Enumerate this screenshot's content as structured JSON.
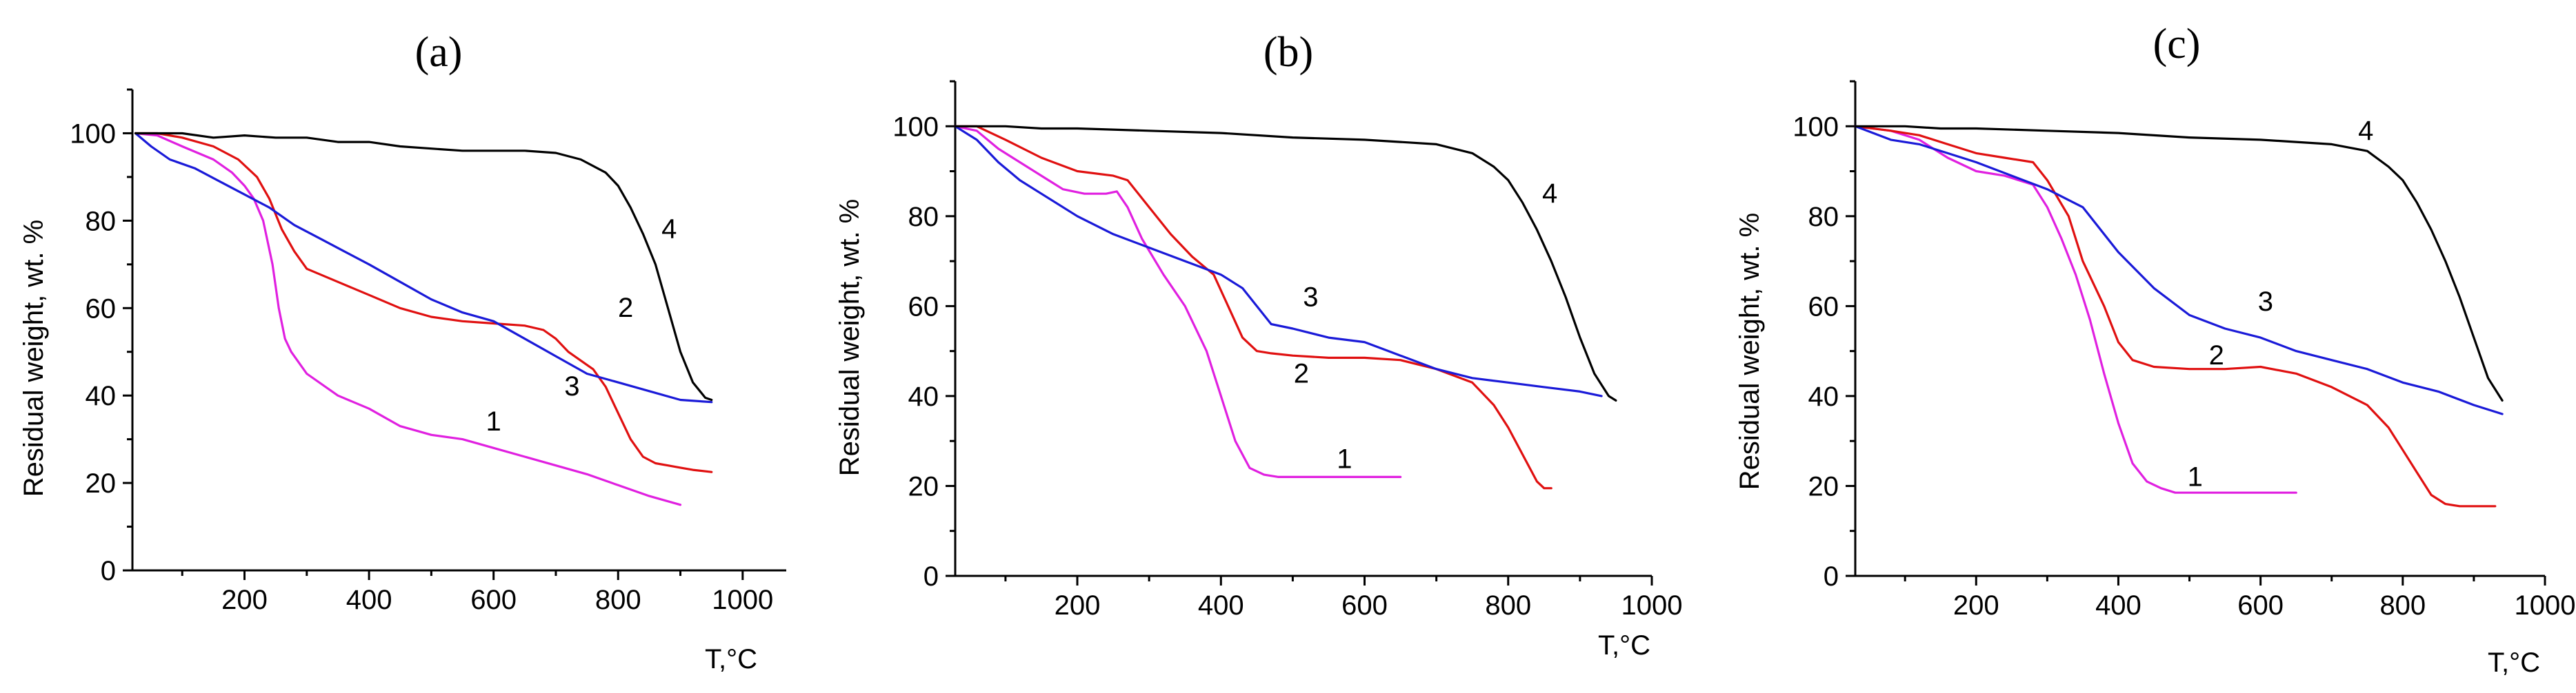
{
  "colors": {
    "1": "#e020e0",
    "2": "#e01010",
    "3": "#1a1ad8",
    "4": "#000000"
  },
  "chart_data": [
    {
      "type": "line",
      "panel_label": "(a)",
      "xlabel": "T,°C",
      "ylabel": "Residual weight, wt. %",
      "xlim": [
        20,
        1070
      ],
      "ylim": [
        0,
        110
      ],
      "xticks": [
        200,
        400,
        600,
        800,
        1000
      ],
      "yticks": [
        0,
        20,
        40,
        60,
        80,
        100
      ],
      "series": [
        {
          "name": "1",
          "x": [
            25,
            60,
            100,
            150,
            180,
            200,
            215,
            230,
            245,
            255,
            265,
            275,
            300,
            350,
            400,
            450,
            500,
            550,
            600,
            650,
            700,
            750,
            800,
            850,
            900
          ],
          "y": [
            100,
            99.5,
            97,
            94,
            91,
            88,
            85,
            80,
            70,
            60,
            53,
            50,
            45,
            40,
            37,
            33,
            31,
            30,
            28,
            26,
            24,
            22,
            19.5,
            17,
            15
          ]
        },
        {
          "name": "2",
          "x": [
            25,
            60,
            100,
            150,
            190,
            220,
            240,
            260,
            280,
            300,
            350,
            400,
            450,
            500,
            550,
            600,
            650,
            680,
            700,
            720,
            740,
            760,
            780,
            800,
            820,
            840,
            860,
            880,
            900,
            920,
            950
          ],
          "y": [
            100,
            100,
            99,
            97,
            94,
            90,
            85,
            78,
            73,
            69,
            66,
            63,
            60,
            58,
            57,
            56.5,
            56,
            55,
            53,
            50,
            48,
            46,
            42,
            36,
            30,
            26,
            24.5,
            24,
            23.5,
            23,
            22.5
          ]
        },
        {
          "name": "3",
          "x": [
            25,
            50,
            80,
            120,
            160,
            200,
            240,
            280,
            320,
            360,
            400,
            450,
            500,
            550,
            600,
            650,
            700,
            750,
            800,
            850,
            900,
            950
          ],
          "y": [
            100,
            97,
            94,
            92,
            89,
            86,
            83,
            79,
            76,
            73,
            70,
            66,
            62,
            59,
            57,
            53,
            49,
            45,
            43,
            41,
            39,
            38.5
          ]
        },
        {
          "name": "4",
          "x": [
            25,
            100,
            150,
            200,
            250,
            300,
            350,
            400,
            450,
            500,
            550,
            600,
            650,
            700,
            740,
            780,
            800,
            820,
            840,
            860,
            880,
            900,
            920,
            940,
            950
          ],
          "y": [
            100,
            100,
            99,
            99.5,
            99,
            99,
            98,
            98,
            97,
            96.5,
            96,
            96,
            96,
            95.5,
            94,
            91,
            88,
            83,
            77,
            70,
            60,
            50,
            43,
            39.5,
            39
          ]
        }
      ],
      "curve_labels": [
        {
          "text": "1",
          "x": 600,
          "y": 32
        },
        {
          "text": "2",
          "x": 812,
          "y": 58
        },
        {
          "text": "3",
          "x": 726,
          "y": 40
        },
        {
          "text": "4",
          "x": 882,
          "y": 76
        }
      ]
    },
    {
      "type": "line",
      "panel_label": "(b)",
      "xlabel": "T,°C",
      "ylabel": "Residual weight, wt. %",
      "xlim": [
        30,
        1000
      ],
      "ylim": [
        0,
        110
      ],
      "xticks": [
        200,
        400,
        600,
        800,
        1000
      ],
      "yticks": [
        0,
        20,
        40,
        60,
        80,
        100
      ],
      "series": [
        {
          "name": "1",
          "x": [
            30,
            60,
            90,
            120,
            150,
            180,
            210,
            240,
            255,
            270,
            290,
            320,
            350,
            380,
            400,
            420,
            440,
            460,
            480,
            500,
            550,
            650
          ],
          "y": [
            100,
            99,
            95,
            92,
            89,
            86,
            85,
            85,
            85.5,
            82,
            75,
            67,
            60,
            50,
            40,
            30,
            24,
            22.5,
            22,
            22,
            22,
            22
          ]
        },
        {
          "name": "2",
          "x": [
            30,
            60,
            100,
            150,
            200,
            250,
            270,
            300,
            330,
            360,
            390,
            410,
            430,
            450,
            470,
            500,
            550,
            600,
            650,
            700,
            750,
            780,
            800,
            820,
            840,
            850,
            860
          ],
          "y": [
            100,
            100,
            97,
            93,
            90,
            89,
            88,
            82,
            76,
            71,
            67,
            60,
            53,
            50,
            49.5,
            49,
            48.5,
            48.5,
            48,
            46,
            43,
            38,
            33,
            27,
            21,
            19.5,
            19.5
          ]
        },
        {
          "name": "3",
          "x": [
            30,
            60,
            90,
            120,
            150,
            200,
            250,
            300,
            350,
            400,
            430,
            450,
            470,
            500,
            550,
            600,
            650,
            700,
            750,
            800,
            850,
            900,
            930
          ],
          "y": [
            100,
            97,
            92,
            88,
            85,
            80,
            76,
            73,
            70,
            67,
            64,
            60,
            56,
            55,
            53,
            52,
            49,
            46,
            44,
            43,
            42,
            41,
            40
          ]
        },
        {
          "name": "4",
          "x": [
            30,
            100,
            150,
            200,
            300,
            400,
            500,
            600,
            650,
            700,
            750,
            780,
            800,
            820,
            840,
            860,
            880,
            900,
            920,
            940,
            950
          ],
          "y": [
            100,
            100,
            99.5,
            99.5,
            99,
            98.5,
            97.5,
            97,
            96.5,
            96,
            94,
            91,
            88,
            83,
            77,
            70,
            62,
            53,
            45,
            40,
            39
          ]
        }
      ],
      "curve_labels": [
        {
          "text": "1",
          "x": 572,
          "y": 24
        },
        {
          "text": "2",
          "x": 512,
          "y": 43
        },
        {
          "text": "3",
          "x": 525,
          "y": 60
        },
        {
          "text": "4",
          "x": 858,
          "y": 83
        }
      ]
    },
    {
      "type": "line",
      "panel_label": "(c)",
      "xlabel": "T,°C",
      "ylabel": "Residual weight, wt. %",
      "xlim": [
        30,
        1000
      ],
      "ylim": [
        0,
        110
      ],
      "xticks": [
        200,
        400,
        600,
        800,
        1000
      ],
      "yticks": [
        0,
        20,
        40,
        60,
        80,
        100
      ],
      "series": [
        {
          "name": "1",
          "x": [
            30,
            80,
            120,
            160,
            200,
            240,
            280,
            300,
            320,
            340,
            360,
            380,
            400,
            420,
            440,
            460,
            480,
            500,
            550,
            650
          ],
          "y": [
            100,
            99,
            97,
            93,
            90,
            89,
            87,
            82,
            75,
            67,
            57,
            45,
            34,
            25,
            21,
            19.5,
            18.5,
            18.5,
            18.5,
            18.5
          ]
        },
        {
          "name": "2",
          "x": [
            30,
            80,
            120,
            160,
            200,
            240,
            280,
            300,
            330,
            350,
            380,
            400,
            420,
            450,
            500,
            550,
            600,
            650,
            700,
            750,
            780,
            800,
            820,
            840,
            860,
            880,
            900,
            930
          ],
          "y": [
            100,
            99,
            98,
            96,
            94,
            93,
            92,
            88,
            80,
            70,
            60,
            52,
            48,
            46.5,
            46,
            46,
            46.5,
            45,
            42,
            38,
            33,
            28,
            23,
            18,
            16,
            15.5,
            15.5,
            15.5
          ]
        },
        {
          "name": "3",
          "x": [
            30,
            80,
            120,
            160,
            200,
            250,
            300,
            350,
            400,
            450,
            500,
            550,
            600,
            650,
            700,
            750,
            800,
            850,
            900,
            940
          ],
          "y": [
            100,
            97,
            96,
            94,
            92,
            89,
            86,
            82,
            72,
            64,
            58,
            55,
            53,
            50,
            48,
            46,
            43,
            41,
            38,
            36
          ]
        },
        {
          "name": "4",
          "x": [
            30,
            100,
            150,
            200,
            300,
            400,
            500,
            600,
            650,
            700,
            750,
            780,
            800,
            820,
            840,
            860,
            880,
            900,
            920,
            940
          ],
          "y": [
            100,
            100,
            99.5,
            99.5,
            99,
            98.5,
            97.5,
            97,
            96.5,
            96,
            94.5,
            91,
            88,
            83,
            77,
            70,
            62,
            53,
            44,
            39
          ]
        }
      ],
      "curve_labels": [
        {
          "text": "1",
          "x": 508,
          "y": 20
        },
        {
          "text": "2",
          "x": 538,
          "y": 47
        },
        {
          "text": "3",
          "x": 607,
          "y": 59
        },
        {
          "text": "4",
          "x": 748,
          "y": 97
        }
      ]
    }
  ]
}
